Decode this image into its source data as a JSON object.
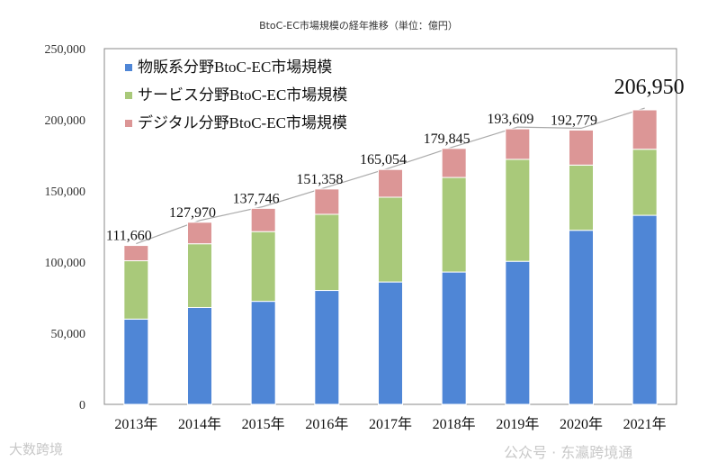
{
  "chart_data": {
    "type": "bar",
    "stacked": true,
    "title": "BtoC-EC市場規模の経年推移（単位：億円）",
    "xlabel": "",
    "ylabel": "",
    "ylim": [
      0,
      250000
    ],
    "yticks": [
      0,
      50000,
      100000,
      150000,
      200000,
      250000
    ],
    "ytick_labels": [
      "0",
      "50,000",
      "100,000",
      "150,000",
      "200,000",
      "250,000"
    ],
    "grid": false,
    "legend_position": "top-left",
    "categories": [
      "2013年",
      "2014年",
      "2015年",
      "2016年",
      "2017年",
      "2018年",
      "2019年",
      "2020年",
      "2021年"
    ],
    "series": [
      {
        "name": "物販系分野BtoC-EC市場規模",
        "color": "#4f86d6",
        "values": [
          59931,
          68043,
          72398,
          80043,
          86008,
          92992,
          100515,
          122333,
          132865
        ]
      },
      {
        "name": "サービス分野BtoC-EC市場規模",
        "color": "#a9c97a",
        "values": [
          40990,
          44816,
          49014,
          53532,
          59568,
          66471,
          71672,
          45832,
          46424
        ]
      },
      {
        "name": "デジタル分野BtoC-EC市場規模",
        "color": "#dc9696",
        "values": [
          10739,
          15111,
          16334,
          17783,
          19478,
          20382,
          21422,
          24614,
          27661
        ]
      }
    ],
    "totals": [
      111660,
      127970,
      137746,
      151358,
      165054,
      179845,
      193609,
      192779,
      206950
    ],
    "total_labels": [
      "111,660",
      "127,970",
      "137,746",
      "151,358",
      "165,054",
      "179,845",
      "193,609",
      "192,779",
      "206,950"
    ]
  },
  "watermarks": {
    "left": "大数跨境",
    "right": "公众号 · 东瀛跨境通"
  }
}
